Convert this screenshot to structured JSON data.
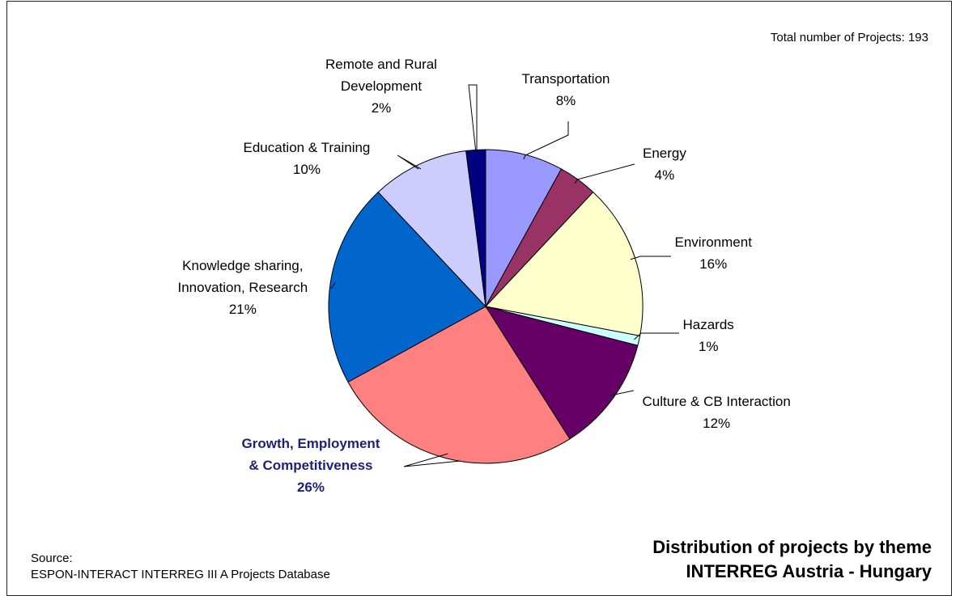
{
  "chart_data": {
    "type": "pie",
    "title": "Distribution of projects by theme",
    "subtitle": "INTERREG Austria - Hungary",
    "total_text": "Total number of Projects: 193",
    "source_label": "Source:",
    "source_text": "ESPON-INTERACT INTERREG III A Projects Database",
    "slices": [
      {
        "name": "Transportation",
        "lines": [
          "Transportation"
        ],
        "value": 8,
        "pct": "8%",
        "color": "#9999ff"
      },
      {
        "name": "Energy",
        "lines": [
          "Energy"
        ],
        "value": 4,
        "pct": "4%",
        "color": "#993366"
      },
      {
        "name": "Environment",
        "lines": [
          "Environment"
        ],
        "value": 16,
        "pct": "16%",
        "color": "#ffffcc"
      },
      {
        "name": "Hazards",
        "lines": [
          "Hazards"
        ],
        "value": 1,
        "pct": "1%",
        "color": "#ccffff"
      },
      {
        "name": "Culture & CB Interaction",
        "lines": [
          "Culture & CB Interaction"
        ],
        "value": 12,
        "pct": "12%",
        "color": "#660066"
      },
      {
        "name": "Growth, Employment & Competitiveness",
        "lines": [
          "Growth, Employment",
          "& Competitiveness"
        ],
        "value": 26,
        "pct": "26%",
        "color": "#ff8080",
        "bold": true
      },
      {
        "name": "Knowledge sharing, Innovation, Research",
        "lines": [
          "Knowledge sharing,",
          "Innovation, Research"
        ],
        "value": 21,
        "pct": "21%",
        "color": "#0066cc"
      },
      {
        "name": "Education & Training",
        "lines": [
          "Education & Training"
        ],
        "value": 10,
        "pct": "10%",
        "color": "#ccccff"
      },
      {
        "name": "Remote and Rural Development",
        "lines": [
          "Remote and Rural",
          "Development"
        ],
        "value": 2,
        "pct": "2%",
        "color": "#000080"
      }
    ]
  }
}
